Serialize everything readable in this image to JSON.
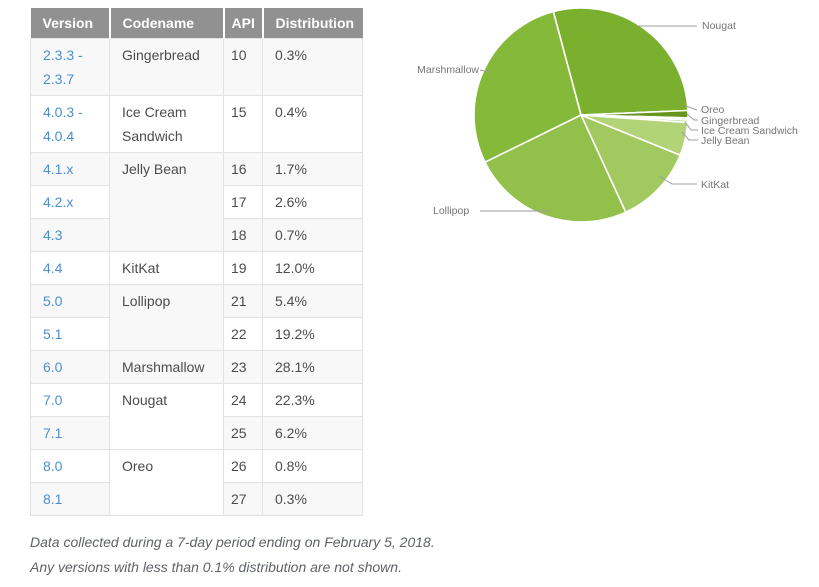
{
  "table": {
    "headers": [
      "Version",
      "Codename",
      "API",
      "Distribution"
    ],
    "rows": [
      {
        "version": "2.3.3 - 2.3.7",
        "codename": "Gingerbread",
        "codename_rowspan": 1,
        "api": "10",
        "distribution": "0.3%"
      },
      {
        "version": "4.0.3 - 4.0.4",
        "codename": "Ice Cream Sandwich",
        "codename_rowspan": 1,
        "api": "15",
        "distribution": "0.4%"
      },
      {
        "version": "4.1.x",
        "codename": "Jelly Bean",
        "codename_rowspan": 3,
        "api": "16",
        "distribution": "1.7%"
      },
      {
        "version": "4.2.x",
        "api": "17",
        "distribution": "2.6%"
      },
      {
        "version": "4.3",
        "api": "18",
        "distribution": "0.7%"
      },
      {
        "version": "4.4",
        "codename": "KitKat",
        "codename_rowspan": 1,
        "api": "19",
        "distribution": "12.0%"
      },
      {
        "version": "5.0",
        "codename": "Lollipop",
        "codename_rowspan": 2,
        "api": "21",
        "distribution": "5.4%"
      },
      {
        "version": "5.1",
        "api": "22",
        "distribution": "19.2%"
      },
      {
        "version": "6.0",
        "codename": "Marshmallow",
        "codename_rowspan": 1,
        "api": "23",
        "distribution": "28.1%"
      },
      {
        "version": "7.0",
        "codename": "Nougat",
        "codename_rowspan": 2,
        "api": "24",
        "distribution": "22.3%"
      },
      {
        "version": "7.1",
        "api": "25",
        "distribution": "6.2%"
      },
      {
        "version": "8.0",
        "codename": "Oreo",
        "codename_rowspan": 2,
        "api": "26",
        "distribution": "0.8%"
      },
      {
        "version": "8.1",
        "api": "27",
        "distribution": "0.3%"
      }
    ]
  },
  "chart_data": {
    "type": "pie",
    "unit": "%",
    "start_angle_deg": -15,
    "legend_position": "outside-callouts",
    "slices": [
      {
        "name": "Nougat",
        "value": 28.5,
        "color": "#7bb02f"
      },
      {
        "name": "Oreo",
        "value": 1.1,
        "color": "#68951f"
      },
      {
        "name": "Gingerbread",
        "value": 0.3,
        "color": "#cfe3a6"
      },
      {
        "name": "Ice Cream Sandwich",
        "value": 0.4,
        "color": "#c1db90"
      },
      {
        "name": "Jelly Bean",
        "value": 5.0,
        "color": "#b2d378"
      },
      {
        "name": "KitKat",
        "value": 12.0,
        "color": "#a1c95f"
      },
      {
        "name": "Lollipop",
        "value": 24.6,
        "color": "#92c04b"
      },
      {
        "name": "Marshmallow",
        "value": 28.1,
        "color": "#85b93a"
      }
    ]
  },
  "footer": {
    "line1": "Data collected during a 7-day period ending on February 5, 2018.",
    "line2": "Any versions with less than 0.1% distribution are not shown."
  },
  "colors": {
    "header_bg": "#919191",
    "header_text": "#ffffff",
    "version_link": "#4d8fd1",
    "body_text": "#4c4c4c",
    "cell_border": "#e2e2e2",
    "row_stripe": "#f8f8f8",
    "callout_line": "#9e9e9e",
    "callout_text": "#757575",
    "footer_text": "#5f6368"
  }
}
